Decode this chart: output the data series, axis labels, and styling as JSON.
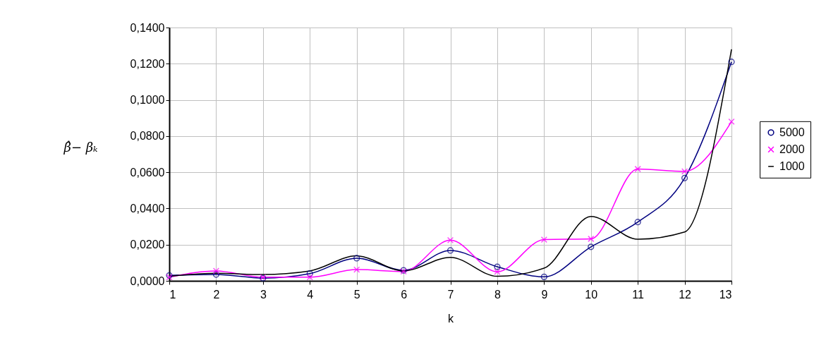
{
  "chart_data": {
    "type": "line",
    "xlabel": "k",
    "ylabel": "β̂− βₖ",
    "x": [
      1,
      2,
      3,
      4,
      5,
      6,
      7,
      8,
      9,
      10,
      11,
      12,
      13
    ],
    "xlim": [
      1,
      13
    ],
    "xticks": [
      1,
      2,
      3,
      4,
      5,
      6,
      7,
      8,
      9,
      10,
      11,
      12,
      13
    ],
    "ylim": [
      0,
      0.14
    ],
    "yticks": [
      {
        "value": 0,
        "label": "0,0000"
      },
      {
        "value": 0.02,
        "label": "0,0200"
      },
      {
        "value": 0.04,
        "label": "0,0400"
      },
      {
        "value": 0.06,
        "label": "0,0600"
      },
      {
        "value": 0.08,
        "label": "0,0800"
      },
      {
        "value": 0.1,
        "label": "0,1000"
      },
      {
        "value": 0.12,
        "label": "0,1200"
      },
      {
        "value": 0.14,
        "label": "0,1400"
      }
    ],
    "grid": true,
    "legend": "right",
    "series": [
      {
        "name": "5000",
        "color": "#000080",
        "marker": "circle",
        "values": [
          0.003,
          0.0035,
          0.0015,
          0.004,
          0.0125,
          0.0058,
          0.0168,
          0.0078,
          0.0022,
          0.0188,
          0.0325,
          0.0568,
          0.121
        ]
      },
      {
        "name": "2000",
        "color": "#ff00ff",
        "marker": "cross",
        "values": [
          0.002,
          0.0055,
          0.002,
          0.002,
          0.0062,
          0.0052,
          0.0225,
          0.005,
          0.0228,
          0.0232,
          0.0618,
          0.0605,
          0.088
        ]
      },
      {
        "name": "1000",
        "color": "#000000",
        "marker": "none",
        "values": [
          0.0025,
          0.0042,
          0.0035,
          0.0055,
          0.0138,
          0.0055,
          0.013,
          0.0025,
          0.007,
          0.0356,
          0.023,
          0.027,
          0.128
        ]
      }
    ]
  }
}
